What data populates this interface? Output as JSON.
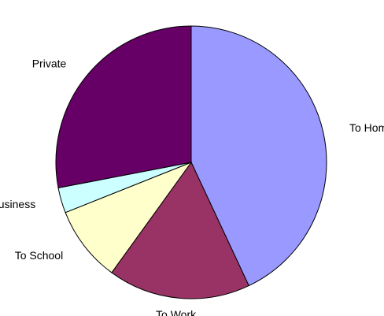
{
  "chart_data": {
    "type": "pie",
    "title": "",
    "start_angle_deg": 0,
    "direction": "clockwise",
    "slices": [
      {
        "label": "To Home",
        "value": 43,
        "color": "#9999ff"
      },
      {
        "label": "To Work",
        "value": 17,
        "color": "#993366"
      },
      {
        "label": "To School",
        "value": 9,
        "color": "#ffffcc"
      },
      {
        "label": "Business",
        "value": 3,
        "color": "#ccffff"
      },
      {
        "label": "Private",
        "value": 28,
        "color": "#660066"
      }
    ]
  }
}
